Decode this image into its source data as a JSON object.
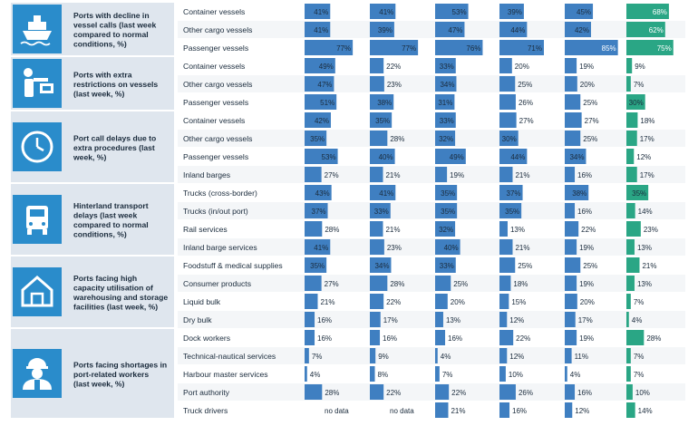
{
  "colors": {
    "bar_blue": "#3f7fc1",
    "bar_teal": "#2aa685",
    "icon_blue": "#2a8ccb",
    "group_bg": "#dfe6ee",
    "text": "#1a2b3c"
  },
  "chart_data": {
    "type": "bar",
    "orientation": "horizontal",
    "columns": 6,
    "value_unit": "%",
    "no_data_label": "no data",
    "groups": [
      {
        "title": "Ports with decline in vessel calls (last week compared to normal conditions, %)",
        "icon": "ship-icon",
        "rows": [
          {
            "label": "Container vessels",
            "values": [
              41,
              41,
              53,
              39,
              45,
              68
            ]
          },
          {
            "label": "Other cargo vessels",
            "values": [
              41,
              39,
              47,
              44,
              42,
              62
            ]
          },
          {
            "label": "Passenger vessels",
            "values": [
              77,
              77,
              76,
              71,
              85,
              75
            ]
          }
        ]
      },
      {
        "title": "Ports with extra restrictions on vessels (last week, %)",
        "icon": "officer-stop-icon",
        "rows": [
          {
            "label": "Container vessels",
            "values": [
              49,
              22,
              33,
              20,
              19,
              9
            ]
          },
          {
            "label": "Other cargo vessels",
            "values": [
              47,
              23,
              34,
              25,
              20,
              7
            ]
          },
          {
            "label": "Passenger vessels",
            "values": [
              51,
              38,
              31,
              26,
              25,
              30
            ]
          }
        ]
      },
      {
        "title": "Port call delays due to extra procedures (last week, %)",
        "icon": "clock-icon",
        "rows": [
          {
            "label": "Container vessels",
            "values": [
              42,
              35,
              33,
              27,
              27,
              18
            ]
          },
          {
            "label": "Other cargo vessels",
            "values": [
              35,
              28,
              32,
              30,
              25,
              17
            ]
          },
          {
            "label": "Passenger vessels",
            "values": [
              53,
              40,
              49,
              44,
              34,
              12
            ]
          },
          {
            "label": "Inland barges",
            "values": [
              27,
              21,
              19,
              21,
              16,
              17
            ]
          }
        ]
      },
      {
        "title": "Hinterland transport delays (last week compared to normal conditions, %)",
        "icon": "truck-icon",
        "rows": [
          {
            "label": "Trucks (cross-border)",
            "values": [
              43,
              41,
              35,
              37,
              38,
              35
            ]
          },
          {
            "label": "Trucks (in/out port)",
            "values": [
              37,
              33,
              35,
              35,
              16,
              14
            ]
          },
          {
            "label": "Rail services",
            "values": [
              28,
              21,
              32,
              13,
              22,
              23
            ]
          },
          {
            "label": "Inland barge services",
            "values": [
              41,
              23,
              40,
              21,
              19,
              13
            ]
          }
        ]
      },
      {
        "title": "Ports facing high capacity utilisation of warehousing and storage facilities (last week, %)",
        "icon": "warehouse-icon",
        "rows": [
          {
            "label": "Foodstuff & medical supplies",
            "values": [
              35,
              34,
              33,
              25,
              25,
              21
            ]
          },
          {
            "label": "Consumer products",
            "values": [
              27,
              28,
              25,
              18,
              19,
              13
            ]
          },
          {
            "label": "Liquid bulk",
            "values": [
              21,
              22,
              20,
              15,
              20,
              7
            ]
          },
          {
            "label": "Dry bulk",
            "values": [
              16,
              17,
              13,
              12,
              17,
              4
            ]
          }
        ]
      },
      {
        "title": "Ports facing shortages in port-related workers (last week, %)",
        "icon": "worker-icon",
        "rows": [
          {
            "label": "Dock workers",
            "values": [
              16,
              16,
              16,
              22,
              19,
              28
            ]
          },
          {
            "label": "Technical-nautical services",
            "values": [
              7,
              9,
              4,
              12,
              11,
              7
            ]
          },
          {
            "label": "Harbour master services",
            "values": [
              4,
              8,
              7,
              10,
              4,
              7
            ]
          },
          {
            "label": "Port authority",
            "values": [
              28,
              22,
              22,
              26,
              16,
              10
            ]
          },
          {
            "label": "Truck drivers",
            "values": [
              null,
              null,
              21,
              16,
              12,
              14
            ]
          }
        ]
      }
    ]
  }
}
